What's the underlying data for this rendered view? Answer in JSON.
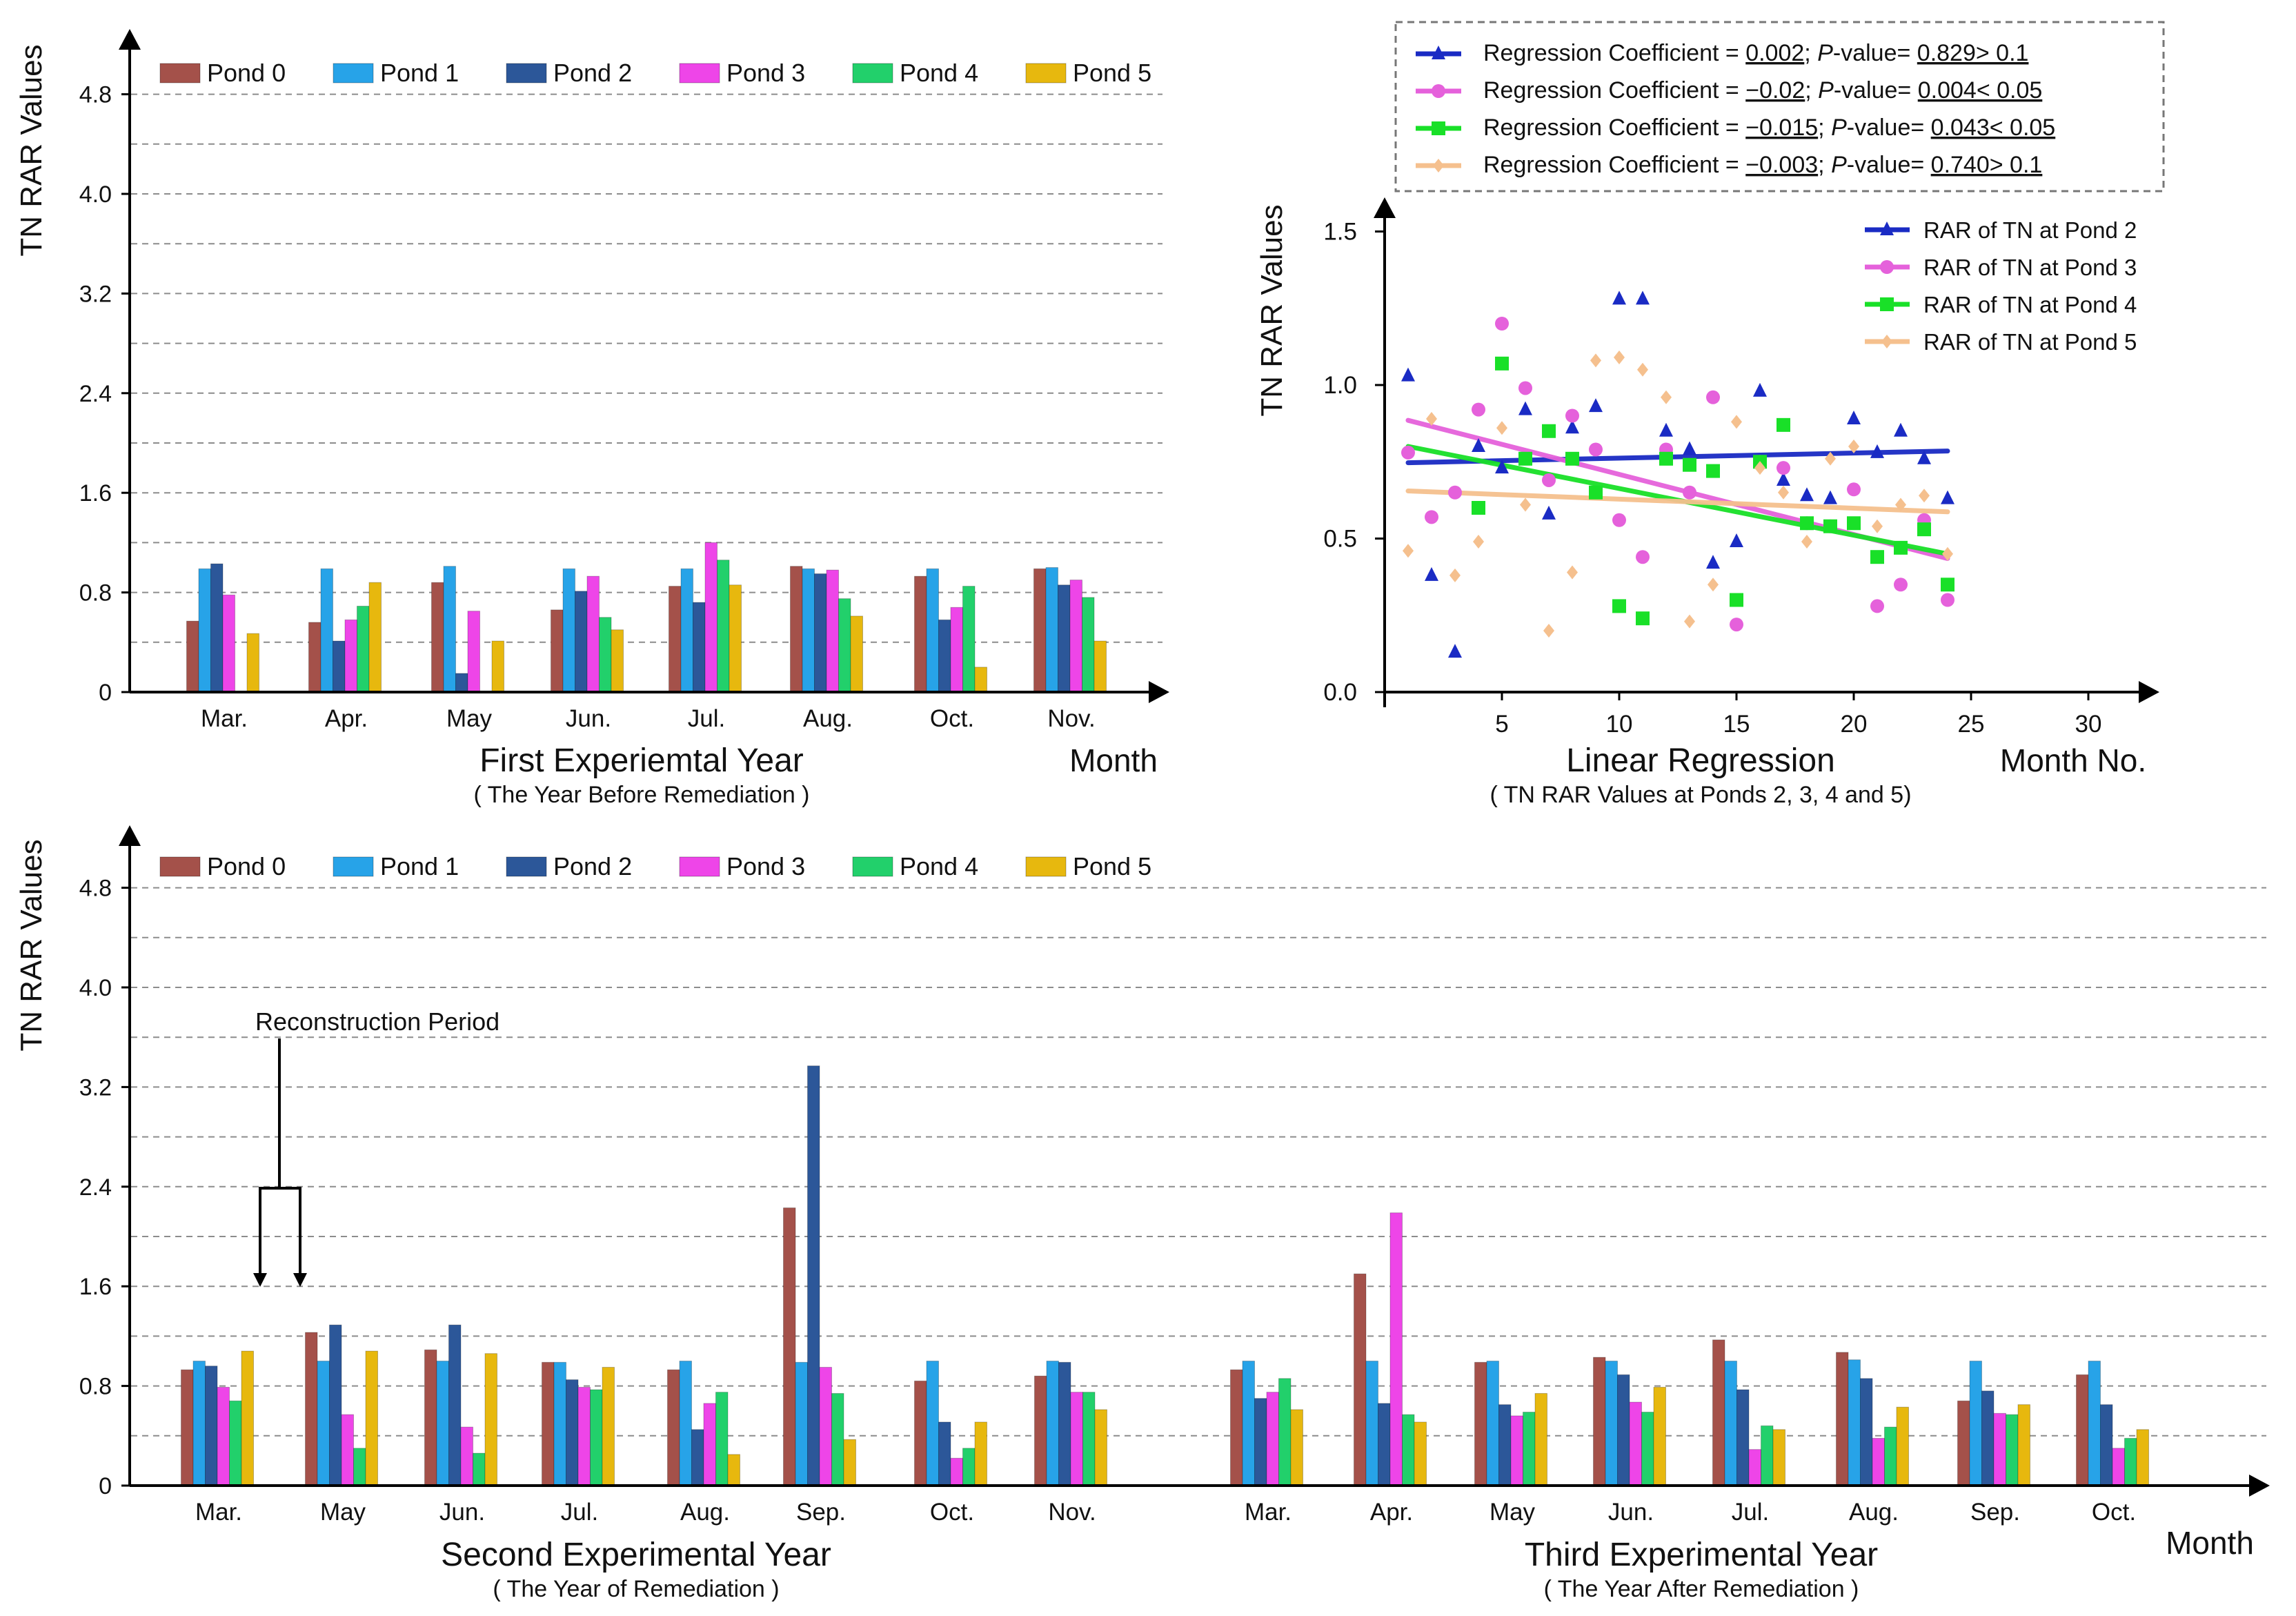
{
  "colors": {
    "pond0": "#A4514A",
    "pond1": "#27A3E8",
    "pond2": "#2C5799",
    "pond3": "#EE45E8",
    "pond4": "#22D06B",
    "pond5": "#E7B80E",
    "reg_pond2": "#1A2BC4",
    "reg_pond3": "#E561DB",
    "reg_pond4": "#19E028",
    "reg_pond5": "#F5C08E",
    "grid": "#8C8C8C",
    "axis": "#000000"
  },
  "legend_labels": [
    "Pond 0",
    "Pond 1",
    "Pond 2",
    "Pond 3",
    "Pond 4",
    "Pond 5"
  ],
  "chart_data": [
    {
      "id": "year1",
      "type": "bar",
      "ylabel": "TN RAR Values",
      "xlabel": "Month",
      "title": "First Experiemtal Year",
      "subtitle": "( The Year Before Remediation )",
      "ylim": [
        0,
        5.2
      ],
      "yticks": [
        "0",
        "0.8",
        "1.6",
        "2.4",
        "3.2",
        "4.0",
        "4.8"
      ],
      "ytick_values": [
        0,
        0.8,
        1.6,
        2.4,
        3.2,
        4.0,
        4.8
      ],
      "grid": true,
      "legend_position": "top",
      "categories": [
        "Mar.",
        "Apr.",
        "May",
        "Jun.",
        "Jul.",
        "Aug.",
        "Oct.",
        "Nov."
      ],
      "series": [
        {
          "name": "Pond 0",
          "values": [
            0.57,
            0.56,
            0.88,
            0.66,
            0.85,
            1.01,
            0.93,
            0.99
          ]
        },
        {
          "name": "Pond 1",
          "values": [
            0.99,
            0.99,
            1.01,
            0.99,
            0.99,
            0.99,
            0.99,
            1.0
          ]
        },
        {
          "name": "Pond 2",
          "values": [
            1.03,
            0.41,
            0.15,
            0.81,
            0.72,
            0.95,
            0.58,
            0.86
          ]
        },
        {
          "name": "Pond 3",
          "values": [
            0.78,
            0.58,
            0.65,
            0.93,
            1.2,
            0.98,
            0.68,
            0.9
          ]
        },
        {
          "name": "Pond 4",
          "values": [
            0.0,
            0.69,
            0.0,
            0.6,
            1.06,
            0.75,
            0.85,
            0.76
          ]
        },
        {
          "name": "Pond 5",
          "values": [
            0.47,
            0.88,
            0.41,
            0.5,
            0.86,
            0.61,
            0.2,
            0.41
          ]
        }
      ]
    },
    {
      "id": "regression",
      "type": "scatter",
      "ylabel": "TN RAR Values",
      "xlabel": "Month No.",
      "title": "Linear Regression",
      "subtitle": "( TN RAR Values at Ponds 2, 3, 4 and 5)",
      "xlim": [
        0,
        32
      ],
      "ylim": [
        0,
        1.5
      ],
      "xticks": [
        5,
        10,
        15,
        20,
        25,
        30
      ],
      "yticks": [
        "0.0",
        "0.5",
        "1.0",
        "1.5"
      ],
      "ytick_values": [
        0,
        0.5,
        1.0,
        1.5
      ],
      "grid": false,
      "legend_position": "top-right",
      "regression_box": [
        {
          "prefix": "Regression Coefficient = ",
          "coef": "0.002",
          "sep": ";  ",
          "p_letter": "P",
          "p_text": "-value= ",
          "p_value": "0.829> 0.1"
        },
        {
          "prefix": "Regression Coefficient = ",
          "coef": "−0.02",
          "sep": ";  ",
          "p_letter": "P",
          "p_text": "-value= ",
          "p_value": "0.004< 0.05"
        },
        {
          "prefix": "Regression Coefficient = ",
          "coef": "−0.015",
          "sep": ";  ",
          "p_letter": "P",
          "p_text": "-value= ",
          "p_value": "0.043< 0.05"
        },
        {
          "prefix": "Regression Coefficient = ",
          "coef": "−0.003",
          "sep": ";  ",
          "p_letter": "P",
          "p_text": "-value= ",
          "p_value": "0.740> 0.1"
        }
      ],
      "series": [
        {
          "name": "RAR of TN at Pond 2",
          "marker": "triangle",
          "points": [
            [
              1,
              1.03
            ],
            [
              2,
              0.38
            ],
            [
              3,
              0.13
            ],
            [
              4,
              0.8
            ],
            [
              5,
              0.73
            ],
            [
              6,
              0.92
            ],
            [
              7,
              0.58
            ],
            [
              8,
              0.86
            ],
            [
              9,
              0.93
            ],
            [
              10,
              1.28
            ],
            [
              11,
              1.28
            ],
            [
              12,
              0.85
            ],
            [
              13,
              0.79
            ],
            [
              14,
              0.42
            ],
            [
              15,
              0.49
            ],
            [
              16,
              0.98
            ],
            [
              17,
              0.69
            ],
            [
              18,
              0.64
            ],
            [
              19,
              0.63
            ],
            [
              20,
              0.89
            ],
            [
              21,
              0.78
            ],
            [
              22,
              0.85
            ],
            [
              23,
              0.76
            ],
            [
              24,
              0.63
            ]
          ],
          "fit": [
            [
              1,
              0.747
            ],
            [
              24,
              0.785
            ]
          ]
        },
        {
          "name": "RAR of TN at Pond 3",
          "marker": "circle",
          "points": [
            [
              1,
              0.78
            ],
            [
              2,
              0.57
            ],
            [
              3,
              0.65
            ],
            [
              4,
              0.92
            ],
            [
              5,
              1.2
            ],
            [
              6,
              0.99
            ],
            [
              7,
              0.69
            ],
            [
              8,
              0.9
            ],
            [
              9,
              0.79
            ],
            [
              10,
              0.56
            ],
            [
              11,
              0.44
            ],
            [
              12,
              0.79
            ],
            [
              13,
              0.65
            ],
            [
              14,
              0.96
            ],
            [
              15,
              0.22
            ],
            [
              16,
              0.75
            ],
            [
              17,
              0.73
            ],
            [
              18,
              0.55
            ],
            [
              19,
              0.54
            ],
            [
              20,
              0.66
            ],
            [
              21,
              0.28
            ],
            [
              22,
              0.35
            ],
            [
              23,
              0.56
            ],
            [
              24,
              0.3
            ]
          ],
          "fit": [
            [
              1,
              0.885
            ],
            [
              24,
              0.435
            ]
          ]
        },
        {
          "name": "RAR of TN at Pond 4",
          "marker": "square",
          "points": [
            [
              4,
              0.6
            ],
            [
              5,
              1.07
            ],
            [
              6,
              0.76
            ],
            [
              7,
              0.85
            ],
            [
              8,
              0.76
            ],
            [
              9,
              0.65
            ],
            [
              10,
              0.28
            ],
            [
              11,
              0.24
            ],
            [
              12,
              0.76
            ],
            [
              13,
              0.74
            ],
            [
              14,
              0.72
            ],
            [
              15,
              0.3
            ],
            [
              16,
              0.75
            ],
            [
              17,
              0.87
            ],
            [
              18,
              0.55
            ],
            [
              19,
              0.54
            ],
            [
              20,
              0.55
            ],
            [
              21,
              0.44
            ],
            [
              22,
              0.47
            ],
            [
              23,
              0.53
            ],
            [
              24,
              0.35
            ]
          ],
          "fit": [
            [
              1,
              0.8
            ],
            [
              24,
              0.45
            ]
          ]
        },
        {
          "name": "RAR of TN at Pond 5",
          "marker": "diamond",
          "points": [
            [
              1,
              0.46
            ],
            [
              2,
              0.89
            ],
            [
              3,
              0.38
            ],
            [
              4,
              0.49
            ],
            [
              5,
              0.86
            ],
            [
              6,
              0.61
            ],
            [
              7,
              0.2
            ],
            [
              8,
              0.39
            ],
            [
              9,
              1.08
            ],
            [
              10,
              1.09
            ],
            [
              11,
              1.05
            ],
            [
              12,
              0.96
            ],
            [
              13,
              0.23
            ],
            [
              14,
              0.35
            ],
            [
              15,
              0.88
            ],
            [
              16,
              0.73
            ],
            [
              17,
              0.65
            ],
            [
              18,
              0.49
            ],
            [
              19,
              0.76
            ],
            [
              20,
              0.8
            ],
            [
              21,
              0.54
            ],
            [
              22,
              0.61
            ],
            [
              23,
              0.64
            ],
            [
              24,
              0.45
            ]
          ],
          "fit": [
            [
              1,
              0.655
            ],
            [
              24,
              0.587
            ]
          ]
        }
      ]
    },
    {
      "id": "years23",
      "type": "bar",
      "ylabel": "TN RAR Values",
      "xlabel": "Month",
      "title": "Second Experimental Year",
      "subtitle": "( The Year of Remediation )",
      "title2": "Third Experimental Year",
      "subtitle2": "( The Year After Remediation )",
      "annotation": "Reconstruction Period",
      "ylim": [
        0,
        5.2
      ],
      "yticks": [
        "0",
        "0.8",
        "1.6",
        "2.4",
        "3.2",
        "4.0",
        "4.8"
      ],
      "ytick_values": [
        0,
        0.8,
        1.6,
        2.4,
        3.2,
        4.0,
        4.8
      ],
      "grid": true,
      "legend_position": "top",
      "categories": [
        "Mar.",
        "May",
        "Jun.",
        "Jul.",
        "Aug.",
        "Sep.",
        "Oct.",
        "Nov.",
        "Mar.",
        "Apr.",
        "May",
        "Jun.",
        "Jul.",
        "Aug.",
        "Sep.",
        "Oct."
      ],
      "series": [
        {
          "name": "Pond 0",
          "values": [
            0.93,
            1.23,
            1.09,
            0.99,
            0.93,
            2.23,
            0.84,
            0.88,
            0.93,
            1.7,
            0.99,
            1.03,
            1.17,
            1.07,
            0.68,
            0.89
          ]
        },
        {
          "name": "Pond 1",
          "values": [
            1.0,
            1.0,
            1.0,
            0.99,
            1.0,
            0.99,
            1.0,
            1.0,
            1.0,
            1.0,
            1.0,
            1.0,
            1.0,
            1.01,
            1.0,
            1.0
          ]
        },
        {
          "name": "Pond 2",
          "values": [
            0.96,
            1.29,
            1.29,
            0.85,
            0.45,
            3.37,
            0.51,
            0.99,
            0.7,
            0.66,
            0.65,
            0.89,
            0.77,
            0.86,
            0.76,
            0.65
          ]
        },
        {
          "name": "Pond 3",
          "values": [
            0.79,
            0.57,
            0.47,
            0.79,
            0.66,
            0.95,
            0.22,
            0.75,
            0.75,
            2.19,
            0.56,
            0.67,
            0.29,
            0.38,
            0.58,
            0.3
          ]
        },
        {
          "name": "Pond 4",
          "values": [
            0.68,
            0.3,
            0.26,
            0.77,
            0.75,
            0.74,
            0.3,
            0.75,
            0.86,
            0.57,
            0.59,
            0.59,
            0.48,
            0.47,
            0.57,
            0.38
          ]
        },
        {
          "name": "Pond 5",
          "values": [
            1.08,
            1.08,
            1.06,
            0.95,
            0.25,
            0.37,
            0.51,
            0.61,
            0.61,
            0.51,
            0.74,
            0.79,
            0.45,
            0.63,
            0.65,
            0.45
          ]
        }
      ]
    }
  ]
}
